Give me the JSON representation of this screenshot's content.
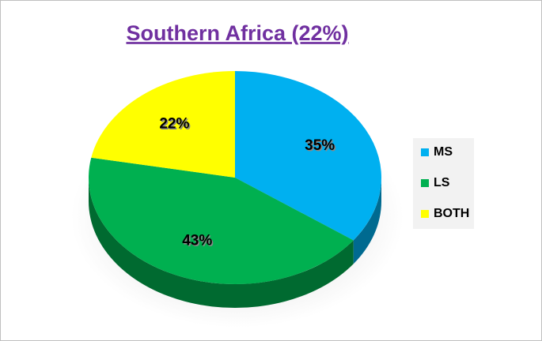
{
  "chart_data": {
    "type": "pie",
    "title": "Southern Africa (22%)",
    "categories": [
      "MS",
      "LS",
      "BOTH"
    ],
    "values": [
      35,
      43,
      22
    ],
    "value_labels": [
      "35%",
      "43%",
      "22%"
    ],
    "colors": [
      "#00b0f0",
      "#00b050",
      "#ffff00"
    ],
    "legend": "right"
  }
}
